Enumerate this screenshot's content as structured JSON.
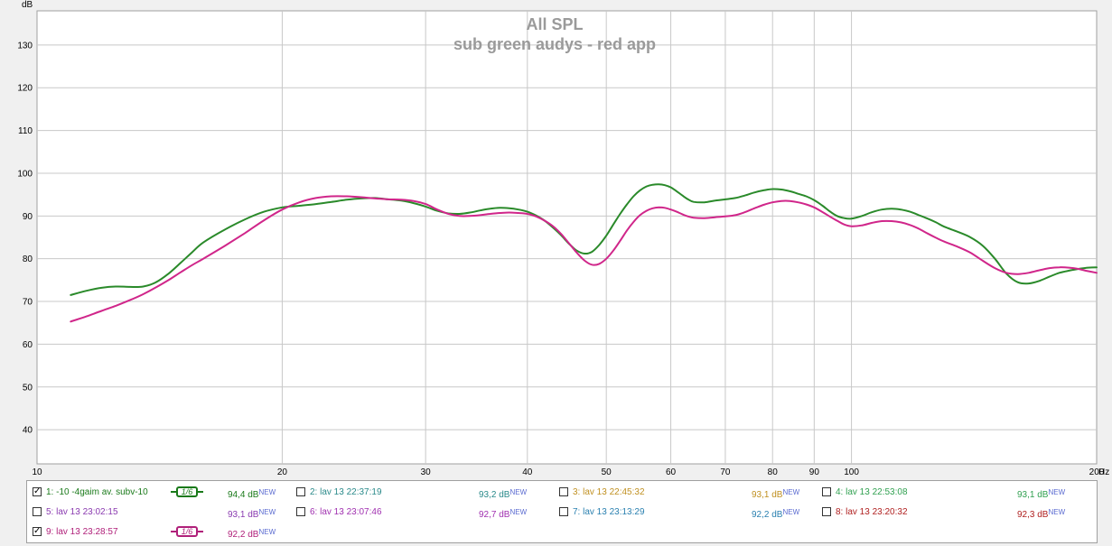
{
  "chart_data": {
    "type": "line",
    "title": "All SPL",
    "subtitle": "sub green audys - red app",
    "ylabel": "dB",
    "xunit": "Hz",
    "xscale": "log",
    "xlim": [
      10,
      200
    ],
    "ylim": [
      32,
      138
    ],
    "grid": true,
    "y_ticks": [
      40,
      50,
      60,
      70,
      80,
      90,
      100,
      110,
      120,
      130
    ],
    "y_tick_labels": [
      "40",
      "50",
      "60",
      "70",
      "80",
      "90",
      "100",
      "110",
      "120",
      "130"
    ],
    "x_ticks": [
      10,
      20,
      30,
      40,
      50,
      60,
      70,
      80,
      90,
      100,
      200
    ],
    "x_tick_labels": [
      "10",
      "20",
      "30",
      "40",
      "50",
      "60",
      "70",
      "80",
      "90",
      "100",
      "200"
    ],
    "series": [
      {
        "name": "1: -10 -4gaim av. subv-10",
        "color": "#2a8a2a",
        "x": [
          11,
          11.5,
          12,
          12.5,
          13,
          13.5,
          14,
          14.5,
          15,
          15.5,
          16,
          17,
          18,
          19,
          20,
          21,
          22,
          23,
          24,
          25,
          26,
          27,
          28,
          29,
          30,
          31,
          32,
          33,
          34,
          35,
          36,
          37,
          38,
          39,
          40,
          41,
          42,
          43,
          44,
          45,
          46,
          47,
          48,
          49,
          50,
          51,
          52,
          53,
          54,
          55,
          56,
          57,
          58,
          59,
          60,
          61,
          62,
          63,
          64,
          66,
          68,
          70,
          72,
          74,
          76,
          78,
          80,
          82,
          84,
          86,
          88,
          90,
          92,
          94,
          96,
          98,
          100,
          103,
          106,
          109,
          112,
          115,
          118,
          121,
          124,
          127,
          130,
          135,
          140,
          145,
          150,
          155,
          160,
          165,
          170,
          175,
          180,
          185,
          190,
          195,
          200
        ],
        "y": [
          71.5,
          72.5,
          73.2,
          73.5,
          73.4,
          73.5,
          74.5,
          76.5,
          79,
          81.5,
          83.8,
          86.8,
          89.2,
          91,
          92,
          92.4,
          92.8,
          93.3,
          93.8,
          94.1,
          94.2,
          93.9,
          93.6,
          93.0,
          92.2,
          91.2,
          90.6,
          90.5,
          90.8,
          91.3,
          91.7,
          91.9,
          91.8,
          91.5,
          91.0,
          90.1,
          88.9,
          87.3,
          85.5,
          83.5,
          81.9,
          81.2,
          81.6,
          83.2,
          85.4,
          88.0,
          90.5,
          92.7,
          94.6,
          96.0,
          96.9,
          97.3,
          97.4,
          97.2,
          96.7,
          95.8,
          94.8,
          93.9,
          93.3,
          93.2,
          93.6,
          93.9,
          94.2,
          94.8,
          95.5,
          96.0,
          96.3,
          96.2,
          95.8,
          95.2,
          94.6,
          93.7,
          92.5,
          91.1,
          90.0,
          89.5,
          89.4,
          90.0,
          90.9,
          91.5,
          91.7,
          91.5,
          91.0,
          90.2,
          89.4,
          88.5,
          87.5,
          86.3,
          85.0,
          83.0,
          80.0,
          76.5,
          74.5,
          74.2,
          74.8,
          75.8,
          76.7,
          77.2,
          77.6,
          77.9,
          78.0
        ]
      },
      {
        "name": "9: lav 13 23:28:57",
        "color": "#d0268a",
        "x": [
          11,
          11.5,
          12,
          12.5,
          13,
          13.5,
          14,
          14.5,
          15,
          15.5,
          16,
          17,
          18,
          19,
          20,
          21,
          22,
          23,
          24,
          25,
          26,
          27,
          28,
          29,
          30,
          31,
          32,
          33,
          34,
          35,
          36,
          37,
          38,
          39,
          40,
          41,
          42,
          43,
          44,
          45,
          46,
          47,
          48,
          49,
          50,
          51,
          52,
          53,
          54,
          55,
          56,
          57,
          58,
          59,
          60,
          61,
          62,
          63,
          64,
          66,
          68,
          70,
          72,
          74,
          76,
          78,
          80,
          82,
          84,
          86,
          88,
          90,
          92,
          94,
          96,
          98,
          100,
          103,
          106,
          109,
          112,
          115,
          118,
          121,
          124,
          127,
          130,
          135,
          140,
          145,
          150,
          155,
          160,
          165,
          170,
          175,
          180,
          185,
          190,
          195,
          200
        ],
        "y": [
          65.3,
          66.5,
          67.8,
          69.0,
          70.3,
          71.7,
          73.3,
          75.0,
          76.8,
          78.5,
          80.0,
          83.0,
          86.0,
          89.0,
          91.5,
          93.2,
          94.2,
          94.6,
          94.6,
          94.4,
          94.1,
          93.9,
          93.8,
          93.5,
          92.8,
          91.5,
          90.5,
          90.0,
          90.0,
          90.2,
          90.5,
          90.7,
          90.8,
          90.7,
          90.5,
          89.9,
          88.9,
          87.6,
          85.8,
          83.6,
          81.4,
          79.6,
          78.6,
          78.8,
          80.0,
          81.9,
          84.2,
          86.6,
          88.6,
          90.2,
          91.2,
          91.8,
          92.0,
          91.9,
          91.5,
          91.0,
          90.4,
          89.9,
          89.6,
          89.5,
          89.7,
          89.9,
          90.2,
          90.9,
          91.8,
          92.6,
          93.2,
          93.5,
          93.5,
          93.2,
          92.7,
          92.0,
          91.0,
          89.9,
          88.9,
          88.0,
          87.6,
          87.8,
          88.4,
          88.8,
          88.8,
          88.5,
          87.9,
          87.0,
          85.9,
          84.9,
          84.0,
          82.8,
          81.4,
          79.5,
          77.8,
          76.7,
          76.4,
          76.7,
          77.3,
          77.8,
          78.0,
          77.9,
          77.6,
          77.1,
          76.7
        ]
      }
    ]
  },
  "legend": {
    "items": [
      {
        "label": "1: -10 -4gaim av. subv-10",
        "checked": true,
        "smoothing": "1/6",
        "value": "94,4 dB",
        "sup": "NEW",
        "color": "#1a7a1a"
      },
      {
        "label": "2: lav 13 22:37:19",
        "checked": false,
        "value": "93,2 dB",
        "sup": "NEW",
        "color": "#2a8a8a"
      },
      {
        "label": "3: lav 13 22:45:32",
        "checked": false,
        "value": "93,1 dB",
        "sup": "NEW",
        "color": "#c09020"
      },
      {
        "label": "4: lav 13 22:53:08",
        "checked": false,
        "value": "93,1 dB",
        "sup": "NEW",
        "color": "#30a050"
      },
      {
        "label": "5: lav 13 23:02:15",
        "checked": false,
        "value": "93,1 dB",
        "sup": "NEW",
        "color": "#8a3ab0"
      },
      {
        "label": "6: lav 13 23:07:46",
        "checked": false,
        "value": "92,7 dB",
        "sup": "NEW",
        "color": "#a030b0"
      },
      {
        "label": "7: lav 13 23:13:29",
        "checked": false,
        "value": "92,2 dB",
        "sup": "NEW",
        "color": "#2a80b0"
      },
      {
        "label": "8: lav 13 23:20:32",
        "checked": false,
        "value": "92,3 dB",
        "sup": "NEW",
        "color": "#b02020"
      },
      {
        "label": "9: lav 13 23:28:57",
        "checked": true,
        "smoothing": "1/6",
        "value": "92,2 dB",
        "sup": "NEW",
        "color": "#b0207a"
      }
    ]
  }
}
